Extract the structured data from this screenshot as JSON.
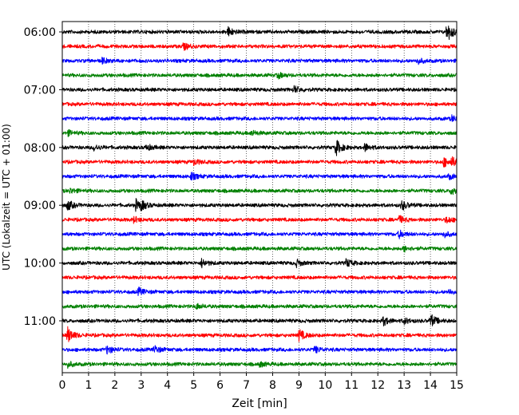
{
  "chart_data": {
    "type": "line",
    "title": "",
    "xlabel": "Zeit  [min]",
    "ylabel": "UTC (Lokalzeit = UTC + 01:00)",
    "xlim": [
      0,
      15
    ],
    "x_ticks": [
      0,
      1,
      2,
      3,
      4,
      5,
      6,
      7,
      8,
      9,
      10,
      11,
      12,
      13,
      14,
      15
    ],
    "y_tick_labels": [
      "06:00",
      "07:00",
      "08:00",
      "09:00",
      "10:00",
      "11:00"
    ],
    "grid": "vertical dotted",
    "trace_interval_minutes": 15,
    "trace_colors": [
      "#000000",
      "#ff0000",
      "#0000ff",
      "#008000"
    ],
    "traces": [
      {
        "start": "06:00",
        "color": "#000000",
        "events": [
          [
            6.3,
            0.55
          ],
          [
            14.6,
            0.6
          ],
          [
            14.7,
            0.5
          ]
        ]
      },
      {
        "start": "06:15",
        "color": "#ff0000",
        "events": [
          [
            4.6,
            0.4
          ]
        ]
      },
      {
        "start": "06:30",
        "color": "#0000ff",
        "events": [
          [
            1.5,
            0.35
          ],
          [
            13.5,
            0.35
          ]
        ]
      },
      {
        "start": "06:45",
        "color": "#008000",
        "events": [
          [
            8.2,
            0.35
          ]
        ]
      },
      {
        "start": "07:00",
        "color": "#000000",
        "events": [
          [
            8.8,
            0.45
          ]
        ]
      },
      {
        "start": "07:15",
        "color": "#ff0000",
        "events": []
      },
      {
        "start": "07:30",
        "color": "#0000ff",
        "events": [
          [
            14.8,
            0.35
          ]
        ]
      },
      {
        "start": "07:45",
        "color": "#008000",
        "events": [
          [
            0.2,
            0.3
          ],
          [
            7.2,
            0.3
          ]
        ]
      },
      {
        "start": "08:00",
        "color": "#000000",
        "events": [
          [
            10.4,
            1.0
          ],
          [
            11.5,
            0.45
          ],
          [
            3.2,
            0.35
          ],
          [
            1.2,
            0.35
          ]
        ]
      },
      {
        "start": "08:15",
        "color": "#ff0000",
        "events": [
          [
            14.5,
            0.55
          ],
          [
            14.8,
            0.5
          ],
          [
            5.0,
            0.35
          ]
        ]
      },
      {
        "start": "08:30",
        "color": "#0000ff",
        "events": [
          [
            4.9,
            0.45
          ],
          [
            14.7,
            0.3
          ]
        ]
      },
      {
        "start": "08:45",
        "color": "#008000",
        "events": [
          [
            14.8,
            0.6
          ],
          [
            0.3,
            0.3
          ]
        ]
      },
      {
        "start": "09:00",
        "color": "#000000",
        "events": [
          [
            0.2,
            0.6
          ],
          [
            2.8,
            0.65
          ],
          [
            12.9,
            0.6
          ],
          [
            3.0,
            0.4
          ]
        ]
      },
      {
        "start": "09:15",
        "color": "#ff0000",
        "events": [
          [
            12.8,
            0.45
          ],
          [
            14.6,
            0.4
          ],
          [
            2.7,
            0.35
          ]
        ]
      },
      {
        "start": "09:30",
        "color": "#0000ff",
        "events": [
          [
            12.8,
            0.45
          ],
          [
            14.5,
            0.35
          ]
        ]
      },
      {
        "start": "09:45",
        "color": "#008000",
        "events": [
          [
            13.0,
            0.35
          ]
        ]
      },
      {
        "start": "10:00",
        "color": "#000000",
        "events": [
          [
            5.3,
            0.5
          ],
          [
            10.8,
            0.5
          ],
          [
            8.9,
            0.4
          ]
        ]
      },
      {
        "start": "10:15",
        "color": "#ff0000",
        "events": []
      },
      {
        "start": "10:30",
        "color": "#0000ff",
        "events": [
          [
            2.9,
            0.45
          ],
          [
            14.7,
            0.3
          ]
        ]
      },
      {
        "start": "10:45",
        "color": "#008000",
        "events": [
          [
            5.1,
            0.3
          ]
        ]
      },
      {
        "start": "11:00",
        "color": "#000000",
        "events": [
          [
            14.0,
            0.8
          ],
          [
            12.2,
            0.55
          ],
          [
            13.0,
            0.35
          ]
        ]
      },
      {
        "start": "11:15",
        "color": "#ff0000",
        "events": [
          [
            0.2,
            1.0
          ],
          [
            9.0,
            0.7
          ]
        ]
      },
      {
        "start": "11:30",
        "color": "#0000ff",
        "events": [
          [
            1.7,
            0.5
          ],
          [
            3.5,
            0.45
          ],
          [
            9.6,
            0.4
          ]
        ]
      },
      {
        "start": "11:45",
        "color": "#008000",
        "events": [
          [
            0.2,
            0.35
          ],
          [
            7.5,
            0.3
          ]
        ]
      }
    ]
  }
}
